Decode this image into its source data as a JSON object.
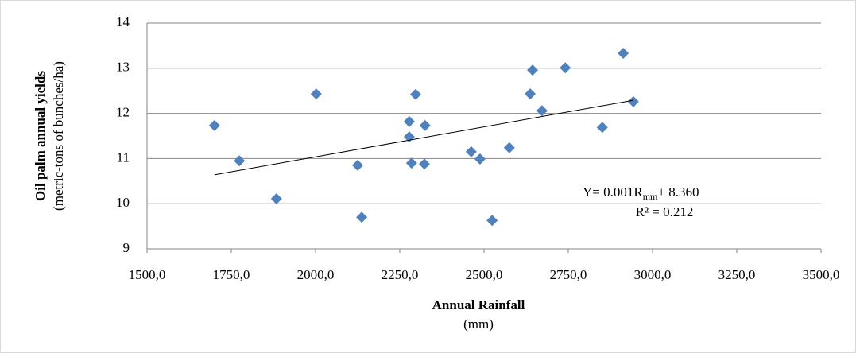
{
  "chart_data": {
    "type": "scatter",
    "x": [
      1700,
      1774,
      1884,
      2002,
      2125,
      2137,
      2278,
      2278,
      2285,
      2297,
      2325,
      2323,
      2462,
      2488,
      2524,
      2575,
      2637,
      2644,
      2672,
      2741,
      2851,
      2913,
      2943
    ],
    "values": [
      11.73,
      10.95,
      10.11,
      12.43,
      10.85,
      9.7,
      11.82,
      11.48,
      10.9,
      12.42,
      11.73,
      10.88,
      11.15,
      10.99,
      9.63,
      11.24,
      12.43,
      12.96,
      12.06,
      13.01,
      11.69,
      13.33,
      12.26
    ],
    "color": "#4f81bd",
    "trendline": {
      "x": [
        1700,
        2943
      ],
      "values": [
        10.64,
        12.29
      ]
    },
    "equation": [
      "Y= 0.001R",
      "mm",
      "+ 8.360"
    ],
    "r_squared": "R² = 0.212",
    "x_label": [
      "Annual Rainfall",
      "(mm)"
    ],
    "y_label": [
      "Oil palm annual yields",
      "(metric-tons of bunches/ha)"
    ],
    "xlim": [
      1500,
      3500
    ],
    "xticks": [
      {
        "value": 1500,
        "label": "1500,0"
      },
      {
        "value": 1750,
        "label": "1750,0"
      },
      {
        "value": 2000,
        "label": "2000,0"
      },
      {
        "value": 2250,
        "label": "2250,0"
      },
      {
        "value": 2500,
        "label": "2500,0"
      },
      {
        "value": 2750,
        "label": "2750,0"
      },
      {
        "value": 3000,
        "label": "3000,0"
      },
      {
        "value": 3250,
        "label": "3250,0"
      },
      {
        "value": 3500,
        "label": "3500,0"
      }
    ],
    "ylim": [
      9,
      14
    ],
    "yticks": [
      9,
      10,
      11,
      12,
      13,
      14
    ],
    "grid": true
  }
}
